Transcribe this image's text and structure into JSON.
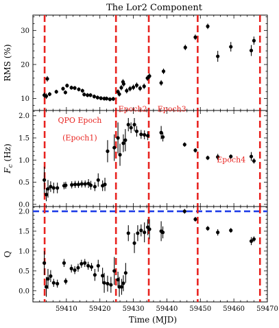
{
  "chart_data": {
    "type": "scatter",
    "title": "The Lor2 Component",
    "xlabel": "Time (MJD)",
    "xlim": [
      59400,
      59470
    ],
    "xticks": [
      59410,
      59420,
      59430,
      59440,
      59450,
      59460,
      59470
    ],
    "xtick_labels": [
      "59410",
      "59420",
      "59430",
      "59440",
      "59450",
      "59460",
      "59470"
    ],
    "epoch_lines_mjd": [
      59403.5,
      59424.8,
      59434.6,
      59449.2,
      59467.8
    ],
    "epoch_line_color": "#e8231f",
    "point_color": "#000000",
    "epoch_labels": [
      {
        "panel": 1,
        "lines": [
          "QPO Epoch",
          "(Epoch1)"
        ],
        "x": 59414,
        "y": [
          0.87,
          0.69
        ]
      },
      {
        "panel": 1,
        "lines": [
          "Epoch2"
        ],
        "x": 59429.8,
        "y": [
          0.99
        ]
      },
      {
        "panel": 1,
        "lines": [
          "Epoch3"
        ],
        "x": 59441.5,
        "y": [
          0.99
        ]
      },
      {
        "panel": 1,
        "lines": [
          "Epoch4"
        ],
        "x": 59459.2,
        "y": [
          0.46
        ]
      }
    ],
    "panels": [
      {
        "ylabel": "RMS (%)",
        "ylim": [
          6.5,
          34.5
        ],
        "yticks": [
          10,
          20,
          30
        ],
        "ytick_labels": [
          "10",
          "20",
          "30"
        ],
        "points": [
          [
            59403.4,
            11.0,
            0.8
          ],
          [
            59404.0,
            10.7,
            0.8
          ],
          [
            59404.3,
            15.8,
            0.8
          ],
          [
            59405.0,
            11.3,
            0.6
          ],
          [
            59407.0,
            12.0,
            0.6
          ],
          [
            59409.0,
            12.9,
            0.6
          ],
          [
            59409.7,
            11.8,
            0.6
          ],
          [
            59410.2,
            13.8,
            0.6
          ],
          [
            59411.5,
            13.2,
            0.6
          ],
          [
            59412.5,
            13.1,
            0.6
          ],
          [
            59413.7,
            12.7,
            0.6
          ],
          [
            59414.8,
            12.3,
            0.6
          ],
          [
            59415.3,
            11.2,
            0.6
          ],
          [
            59416.3,
            11.0,
            0.6
          ],
          [
            59417.2,
            11.0,
            0.6
          ],
          [
            59418.3,
            10.6,
            0.6
          ],
          [
            59419.3,
            10.3,
            0.6
          ],
          [
            59420.3,
            10.1,
            0.6
          ],
          [
            59421.3,
            10.0,
            0.6
          ],
          [
            59422.0,
            10.0,
            0.6
          ],
          [
            59423.0,
            9.8,
            0.6
          ],
          [
            59424.0,
            9.9,
            0.6
          ],
          [
            59425.4,
            12.0,
            0.7
          ],
          [
            59425.8,
            11.3,
            0.7
          ],
          [
            59426.4,
            13.2,
            0.8
          ],
          [
            59426.9,
            14.9,
            0.8
          ],
          [
            59427.1,
            14.3,
            0.8
          ],
          [
            59428.0,
            12.3,
            0.8
          ],
          [
            59429.0,
            12.9,
            0.8
          ],
          [
            59430.0,
            13.3,
            0.8
          ],
          [
            59431.0,
            13.9,
            0.8
          ],
          [
            59432.0,
            13.0,
            0.8
          ],
          [
            59433.2,
            13.6,
            0.8
          ],
          [
            59434.2,
            16.0,
            0.8
          ],
          [
            59434.8,
            16.6,
            0.8
          ],
          [
            59438.3,
            14.6,
            0.8
          ],
          [
            59439.0,
            18.0,
            0.8
          ],
          [
            59445.5,
            25.0,
            0.8
          ],
          [
            59448.5,
            28.0,
            0.8
          ],
          [
            59452.2,
            31.2,
            0.8
          ],
          [
            59455.2,
            22.4,
            1.6
          ],
          [
            59459.1,
            25.2,
            1.4
          ],
          [
            59465.2,
            24.1,
            1.6
          ],
          [
            59466.0,
            27.0,
            1.2
          ]
        ]
      },
      {
        "ylabel": "F_c (Hz)",
        "ylim": [
          -0.05,
          2.12
        ],
        "yticks": [
          0.0,
          0.5,
          1.0,
          1.5,
          2.0
        ],
        "ytick_labels": [
          "0.0",
          "0.5",
          "1.0",
          "1.5",
          "2.0"
        ],
        "points": [
          [
            59403.4,
            0.55,
            0.3
          ],
          [
            59404.0,
            0.22,
            0.15
          ],
          [
            59404.5,
            0.35,
            0.2
          ],
          [
            59405.3,
            0.4,
            0.12
          ],
          [
            59406.2,
            0.37,
            0.12
          ],
          [
            59407.3,
            0.37,
            0.12
          ],
          [
            59409.3,
            0.42,
            0.08
          ],
          [
            59409.8,
            0.43,
            0.08
          ],
          [
            59411.6,
            0.44,
            0.08
          ],
          [
            59412.6,
            0.45,
            0.08
          ],
          [
            59413.6,
            0.45,
            0.08
          ],
          [
            59414.6,
            0.46,
            0.08
          ],
          [
            59415.6,
            0.46,
            0.08
          ],
          [
            59416.6,
            0.47,
            0.1
          ],
          [
            59417.3,
            0.43,
            0.1
          ],
          [
            59418.5,
            0.4,
            0.1
          ],
          [
            59419.5,
            0.55,
            0.15
          ],
          [
            59420.8,
            0.42,
            0.12
          ],
          [
            59421.5,
            0.45,
            0.15
          ],
          [
            59422.3,
            1.2,
            0.25
          ],
          [
            59424.3,
            1.28,
            0.3
          ],
          [
            59425.4,
            1.5,
            0.35
          ],
          [
            59426.0,
            1.12,
            0.25
          ],
          [
            59427.0,
            1.38,
            0.2
          ],
          [
            59427.6,
            1.45,
            0.25
          ],
          [
            59428.5,
            1.8,
            0.15
          ],
          [
            59429.3,
            1.73,
            0.12
          ],
          [
            59430.3,
            1.8,
            0.15
          ],
          [
            59431.0,
            1.65,
            0.12
          ],
          [
            59432.3,
            1.58,
            0.1
          ],
          [
            59433.3,
            1.57,
            0.1
          ],
          [
            59434.3,
            1.55,
            0.1
          ],
          [
            59438.3,
            1.62,
            0.15
          ],
          [
            59438.8,
            1.52,
            0.1
          ],
          [
            59445.3,
            1.35,
            0.05
          ],
          [
            59448.5,
            1.22,
            0.05
          ],
          [
            59452.2,
            1.05,
            0.05
          ],
          [
            59455.2,
            1.07,
            0.07
          ],
          [
            59459.1,
            1.08,
            0.05
          ],
          [
            59465.2,
            1.08,
            0.1
          ],
          [
            59466.0,
            0.98,
            0.06
          ]
        ]
      },
      {
        "ylabel": "Q",
        "ylim": [
          -0.28,
          2.12
        ],
        "yticks": [
          0.0,
          0.5,
          1.0,
          1.5,
          2.0
        ],
        "ytick_labels": [
          "0.0",
          "0.5",
          "1.0",
          "1.5",
          "2.0"
        ],
        "hline": {
          "y": 2.0,
          "color": "#1f3de8"
        },
        "points": [
          [
            59403.4,
            0.7,
            0.3
          ],
          [
            59404.0,
            0.1,
            0.25
          ],
          [
            59404.5,
            0.3,
            0.25
          ],
          [
            59405.3,
            0.37,
            0.15
          ],
          [
            59406.2,
            0.2,
            0.1
          ],
          [
            59407.3,
            0.18,
            0.1
          ],
          [
            59409.3,
            0.7,
            0.1
          ],
          [
            59409.8,
            0.24,
            0.08
          ],
          [
            59411.5,
            0.56,
            0.1
          ],
          [
            59412.5,
            0.52,
            0.1
          ],
          [
            59413.5,
            0.58,
            0.1
          ],
          [
            59414.5,
            0.68,
            0.1
          ],
          [
            59415.5,
            0.7,
            0.1
          ],
          [
            59416.5,
            0.63,
            0.1
          ],
          [
            59417.5,
            0.6,
            0.1
          ],
          [
            59418.5,
            0.4,
            0.15
          ],
          [
            59419.5,
            0.63,
            0.15
          ],
          [
            59420.8,
            0.38,
            0.2
          ],
          [
            59421.3,
            0.2,
            0.25
          ],
          [
            59422.3,
            0.18,
            0.2
          ],
          [
            59423.3,
            0.15,
            0.2
          ],
          [
            59424.3,
            0.5,
            0.35
          ],
          [
            59425.4,
            0.28,
            0.2
          ],
          [
            59425.8,
            0.1,
            0.25
          ],
          [
            59426.5,
            0.1,
            0.2
          ],
          [
            59427.0,
            0.19,
            0.2
          ],
          [
            59427.7,
            0.45,
            0.25
          ],
          [
            59428.5,
            1.45,
            0.2
          ],
          [
            59430.3,
            1.2,
            0.25
          ],
          [
            59431.3,
            1.45,
            0.2
          ],
          [
            59432.3,
            1.52,
            0.15
          ],
          [
            59433.3,
            1.47,
            0.25
          ],
          [
            59434.3,
            1.6,
            0.2
          ],
          [
            59434.8,
            1.55,
            0.25
          ],
          [
            59438.3,
            1.5,
            0.25
          ],
          [
            59438.8,
            1.47,
            0.15
          ],
          [
            59445.3,
            2.0,
            0.06
          ],
          [
            59448.5,
            1.8,
            0.06
          ],
          [
            59452.2,
            1.57,
            0.06
          ],
          [
            59455.2,
            1.47,
            0.08
          ],
          [
            59459.1,
            1.52,
            0.06
          ],
          [
            59465.2,
            1.25,
            0.1
          ],
          [
            59466.0,
            1.3,
            0.07
          ]
        ]
      }
    ]
  }
}
